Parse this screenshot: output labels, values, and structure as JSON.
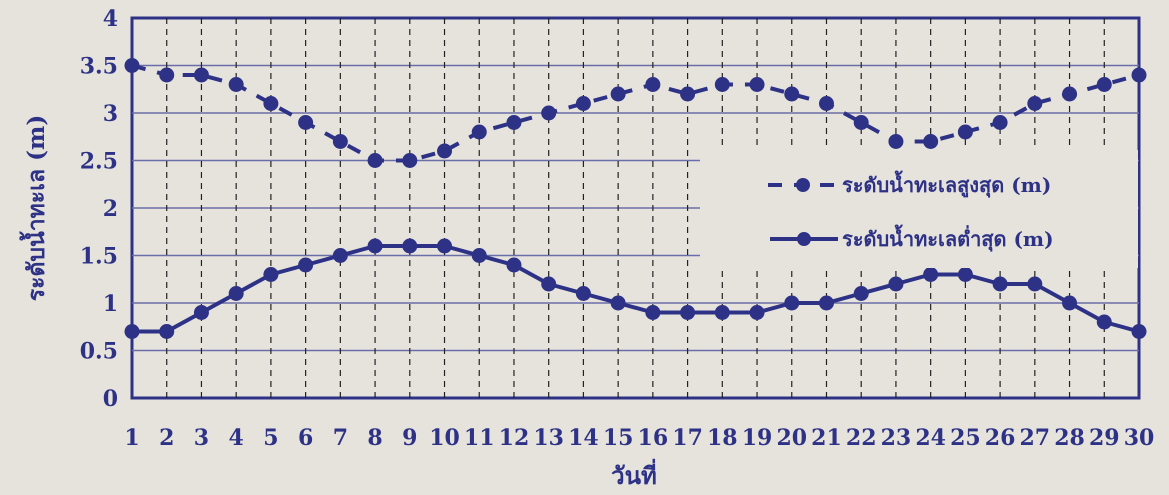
{
  "chart_data": {
    "type": "line",
    "xlabel": "วันที่",
    "ylabel": "ระดับน้ำทะเล (m)",
    "x": [
      1,
      2,
      3,
      4,
      5,
      6,
      7,
      8,
      9,
      10,
      11,
      12,
      13,
      14,
      15,
      16,
      17,
      18,
      19,
      20,
      21,
      22,
      23,
      24,
      25,
      26,
      27,
      28,
      29,
      30
    ],
    "y_ticks": [
      "0",
      "0.5",
      "1",
      "1.5",
      "2",
      "2.5",
      "3",
      "3.5",
      "4"
    ],
    "ylim": [
      0,
      4
    ],
    "xlim": [
      1,
      30
    ],
    "grid": true,
    "legend_position": "right",
    "series": [
      {
        "name": "ระดับน้ำทะเลสูงสุด (m)",
        "style": "dashed",
        "values": [
          3.5,
          3.4,
          3.4,
          3.3,
          3.1,
          2.9,
          2.7,
          2.5,
          2.5,
          2.6,
          2.8,
          2.9,
          3.0,
          3.1,
          3.2,
          3.3,
          3.2,
          3.3,
          3.3,
          3.2,
          3.1,
          2.9,
          2.7,
          2.7,
          2.8,
          2.9,
          3.1,
          3.2,
          3.3,
          3.4
        ]
      },
      {
        "name": "ระดับน้ำทะเลต่ำสุด (m)",
        "style": "solid",
        "values": [
          0.7,
          0.7,
          0.9,
          1.1,
          1.3,
          1.4,
          1.5,
          1.6,
          1.6,
          1.6,
          1.5,
          1.4,
          1.2,
          1.1,
          1.0,
          0.9,
          0.9,
          0.9,
          0.9,
          1.0,
          1.0,
          1.1,
          1.2,
          1.3,
          1.3,
          1.2,
          1.2,
          1.0,
          0.8,
          0.7
        ]
      }
    ]
  },
  "colors": {
    "ink": "#2e3286",
    "grid": "#6a6ea8",
    "background": "#e6e3dd"
  }
}
